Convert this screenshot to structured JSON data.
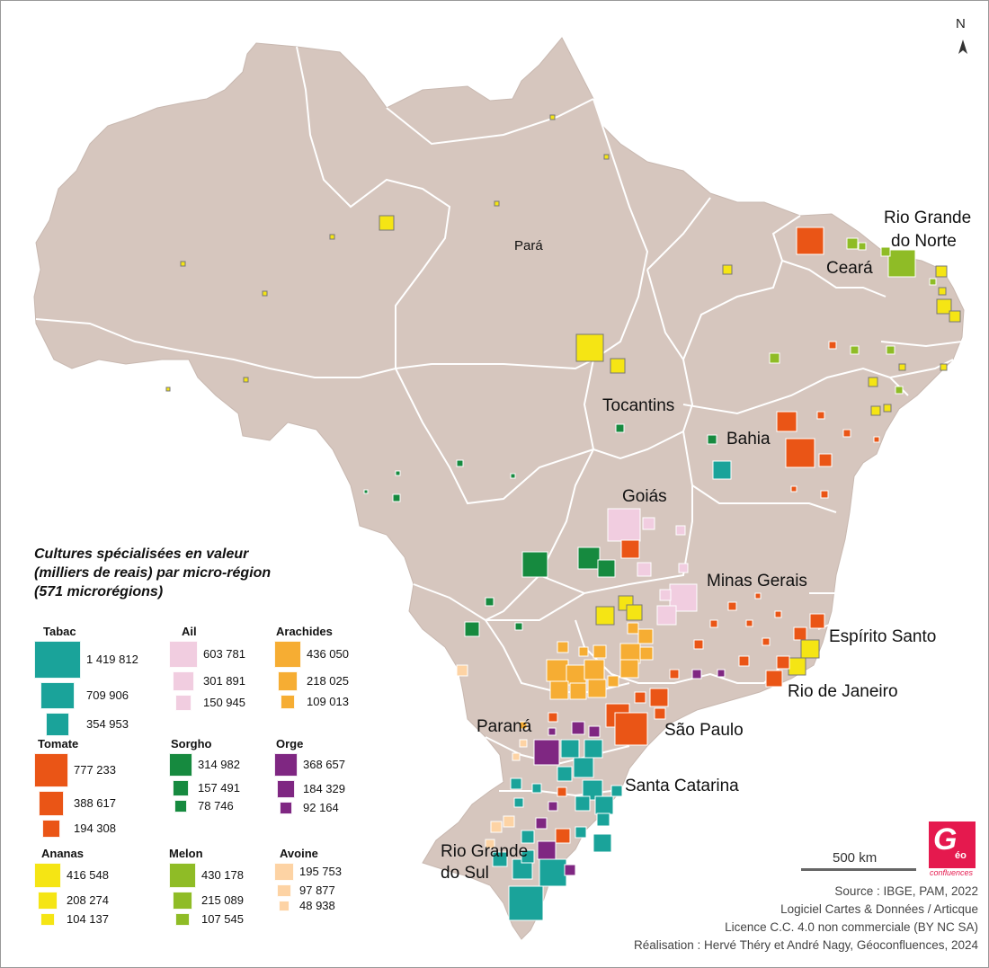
{
  "map": {
    "states": [
      {
        "id": "para",
        "label": "Pará"
      },
      {
        "id": "tocantins",
        "label": "Tocantins"
      },
      {
        "id": "bahia",
        "label": "Bahia"
      },
      {
        "id": "goias",
        "label": "Goiás"
      },
      {
        "id": "minas",
        "label": "Minas Gerais"
      },
      {
        "id": "ceara",
        "label": "Ceará"
      },
      {
        "id": "rgn1",
        "label": "Rio Grande"
      },
      {
        "id": "rgn2",
        "label": "do Norte"
      },
      {
        "id": "es",
        "label": "Espírito Santo"
      },
      {
        "id": "rj",
        "label": "Rio de Janeiro"
      },
      {
        "id": "sp",
        "label": "São Paulo"
      },
      {
        "id": "pr",
        "label": "Paraná"
      },
      {
        "id": "sc",
        "label": "Santa Catarina"
      },
      {
        "id": "rs1",
        "label": "Rio Grande"
      },
      {
        "id": "rs2",
        "label": "do Sul"
      }
    ],
    "north": "N",
    "scale": "500 km"
  },
  "legend": {
    "title_lines": [
      "Cultures spécialisées en valeur",
      "(milliers de reais) par micro-région",
      "(571 microrégions)"
    ],
    "crops": [
      {
        "name": "Tabac",
        "color": "#1aa39a",
        "values": [
          "1 419 812",
          "709 906",
          "354 953"
        ]
      },
      {
        "name": "Ail",
        "color": "#f1cde0",
        "values": [
          "603 781",
          "301 891",
          "150 945"
        ]
      },
      {
        "name": "Arachides",
        "color": "#f6ad33",
        "values": [
          "436 050",
          "218 025",
          "109 013"
        ]
      },
      {
        "name": "Tomate",
        "color": "#ea5516",
        "values": [
          "777 233",
          "388 617",
          "194 308"
        ]
      },
      {
        "name": "Sorgho",
        "color": "#168a3f",
        "values": [
          "314 982",
          "157 491",
          "78 746"
        ]
      },
      {
        "name": "Orge",
        "color": "#7f2782",
        "values": [
          "368 657",
          "184 329",
          "92 164"
        ]
      },
      {
        "name": "Ananas",
        "color": "#f5e514",
        "values": [
          "416 548",
          "208 274",
          "104 137"
        ]
      },
      {
        "name": "Melon",
        "color": "#8fbc26",
        "values": [
          "430 178",
          "215 089",
          "107 545"
        ]
      },
      {
        "name": "Avoine",
        "color": "#fdd3a4",
        "values": [
          "195 753",
          "97 877",
          "48 938"
        ]
      }
    ]
  },
  "credits": [
    "Source : IBGE, PAM, 2022",
    "Logiciel Cartes & Données / Articque",
    "Licence C.C. 4.0 non commerciale (BY NC SA)",
    "Réalisation : Hervé Théry et André Nagy, Géoconfluences, 2024"
  ],
  "logo": {
    "main": "G",
    "suffix": "éo",
    "text": "confluences"
  }
}
